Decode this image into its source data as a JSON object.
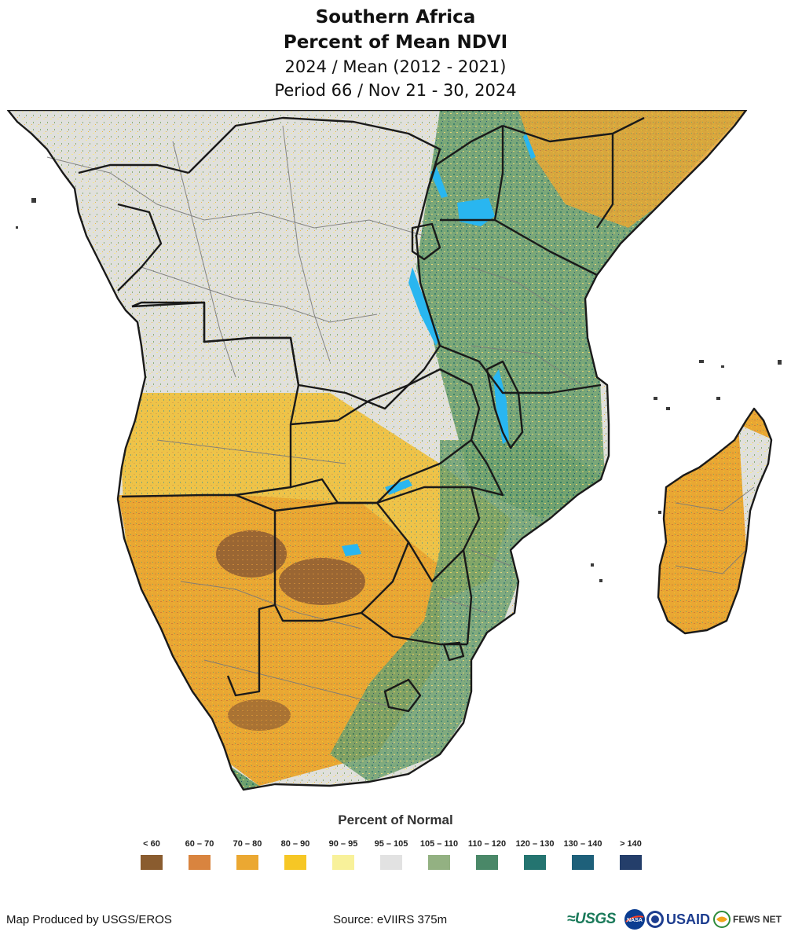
{
  "title": {
    "line1": "Southern Africa",
    "line2": "Percent of Mean NDVI",
    "line3": "2024 / Mean (2012 - 2021)",
    "line4": "Period 66 / Nov 21 - 30, 2024"
  },
  "colors": {
    "ocean": "#ffffff",
    "border": "#1a1a1a",
    "admin": "#7a7a7a",
    "water": "#29b6f0"
  },
  "legend": {
    "title": "Percent of Normal",
    "classes": [
      {
        "label": "< 60",
        "color": "#8a5c2f"
      },
      {
        "label": "60 – 70",
        "color": "#d9843f"
      },
      {
        "label": "70 – 80",
        "color": "#eba832"
      },
      {
        "label": "80 – 90",
        "color": "#f6c725"
      },
      {
        "label": "90 – 95",
        "color": "#f8f19a"
      },
      {
        "label": "95 – 105",
        "color": "#e2e2e2"
      },
      {
        "label": "105 – 110",
        "color": "#93b182"
      },
      {
        "label": "110 – 120",
        "color": "#4a8868"
      },
      {
        "label": "120 – 130",
        "color": "#247470"
      },
      {
        "label": "130 – 140",
        "color": "#1e607a"
      },
      {
        "label": "> 140",
        "color": "#243e6a"
      }
    ]
  },
  "footer": {
    "producer": "Map Produced by USGS/EROS",
    "source": "Source: eVIIRS 375m"
  },
  "logos": {
    "usgs": "≈USGS",
    "nasa": "NASA",
    "usaid": "USAID",
    "fews": "FEWS NET"
  }
}
